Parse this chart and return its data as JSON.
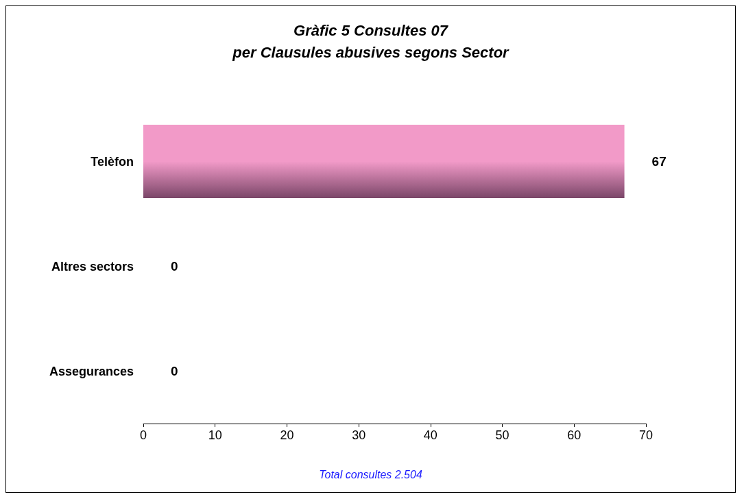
{
  "chart_data": {
    "type": "bar",
    "orientation": "horizontal",
    "title": "Gràfic 5 Consultes 07\nper Clausules abusives segons Sector",
    "categories": [
      "Telèfon",
      "Altres sectors",
      "Assegurances"
    ],
    "values": [
      67,
      0,
      0
    ],
    "color": "#f29ac8",
    "xlim": [
      0,
      70
    ],
    "xticks": [
      0,
      10,
      20,
      30,
      40,
      50,
      60,
      70
    ],
    "data_labels": true,
    "grid": false,
    "annotations": [
      "Total consultes 2.504"
    ]
  }
}
